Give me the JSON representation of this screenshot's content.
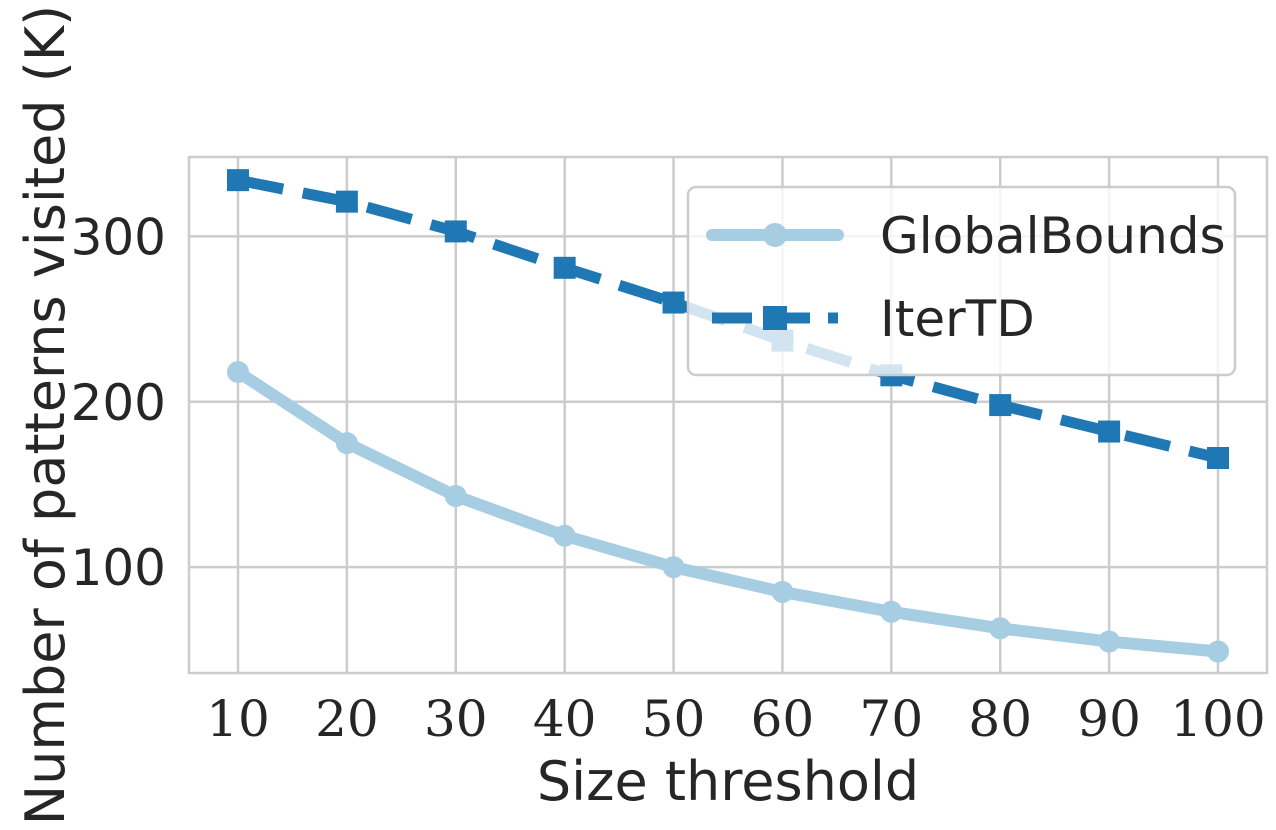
{
  "chart_data": {
    "type": "line",
    "title": "",
    "xlabel": "Size threshold",
    "ylabel": "Number of patterns visited (K)",
    "x": [
      10,
      20,
      30,
      40,
      50,
      60,
      70,
      80,
      90,
      100
    ],
    "xticks": [
      "10",
      "20",
      "30",
      "40",
      "50",
      "60",
      "70",
      "80",
      "90",
      "100"
    ],
    "yticks": [
      "100",
      "200",
      "300"
    ],
    "yticks_values": [
      100,
      200,
      300
    ],
    "xlim": [
      5.5,
      104.5
    ],
    "ylim": [
      36,
      348
    ],
    "grid": true,
    "legend_position": "top-right",
    "series": [
      {
        "name": "GlobalBounds",
        "values": [
          218,
          175,
          143,
          119,
          100,
          85,
          73,
          63,
          55,
          49
        ],
        "color": "#a6cde2",
        "marker": "circle",
        "linestyle": "solid"
      },
      {
        "name": "IterTD",
        "values": [
          334,
          321,
          303,
          281,
          260,
          237,
          216,
          198,
          182,
          166
        ],
        "color": "#1f78b4",
        "marker": "square",
        "linestyle": "dashed"
      }
    ]
  }
}
